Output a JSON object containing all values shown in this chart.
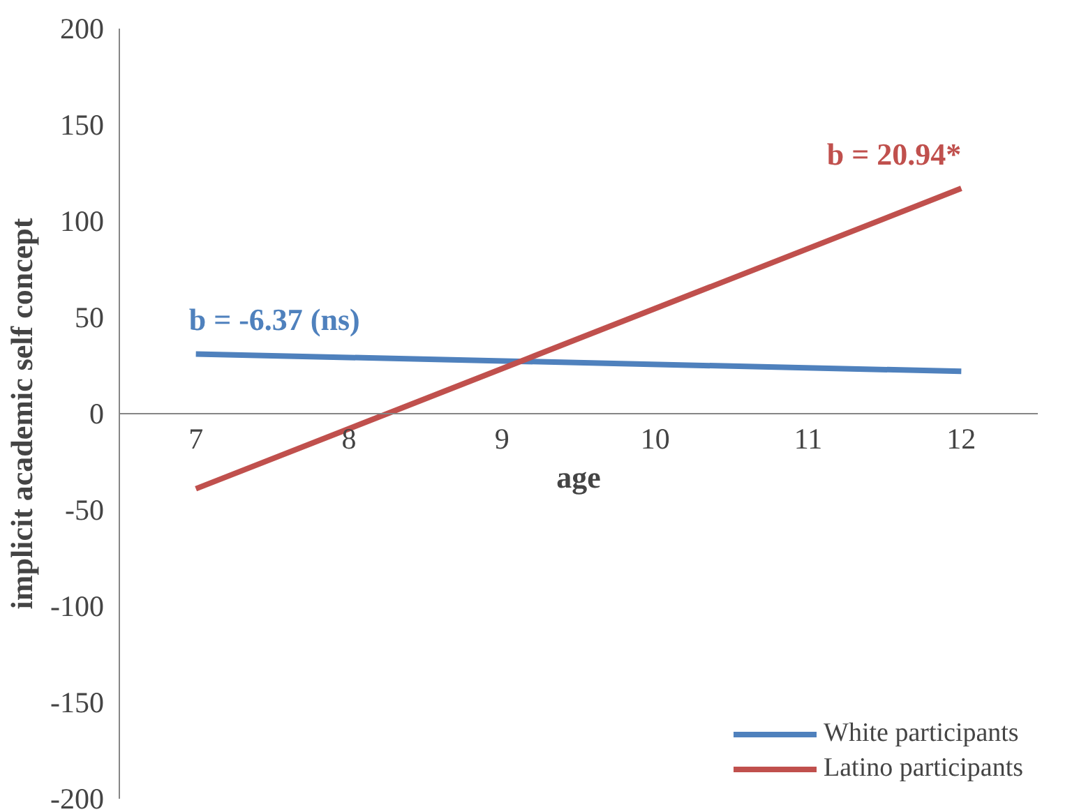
{
  "chart_data": {
    "type": "line",
    "xlabel": "age",
    "ylabel": "implicit academic self concept",
    "x": [
      7,
      12
    ],
    "xlim": [
      6.5,
      12.5
    ],
    "xticks": [
      7,
      8,
      9,
      10,
      11,
      12
    ],
    "ylim": [
      -200,
      200
    ],
    "yticks": [
      -200,
      -150,
      -100,
      -50,
      0,
      50,
      100,
      150,
      200
    ],
    "series": [
      {
        "name": "White participants",
        "color": "#4f81bd",
        "values": [
          31,
          22
        ]
      },
      {
        "name": "Latino participants",
        "color": "#c0504d",
        "values": [
          -39,
          117
        ]
      }
    ],
    "annotations": [
      {
        "text": "b = -6.37 (ns)",
        "x": 7,
        "y": 31
      },
      {
        "text": "b = 20.94*",
        "x": 12,
        "y": 117
      }
    ],
    "grid": false,
    "legend": "bottom right",
    "marker": "none",
    "line_style": "solid"
  }
}
